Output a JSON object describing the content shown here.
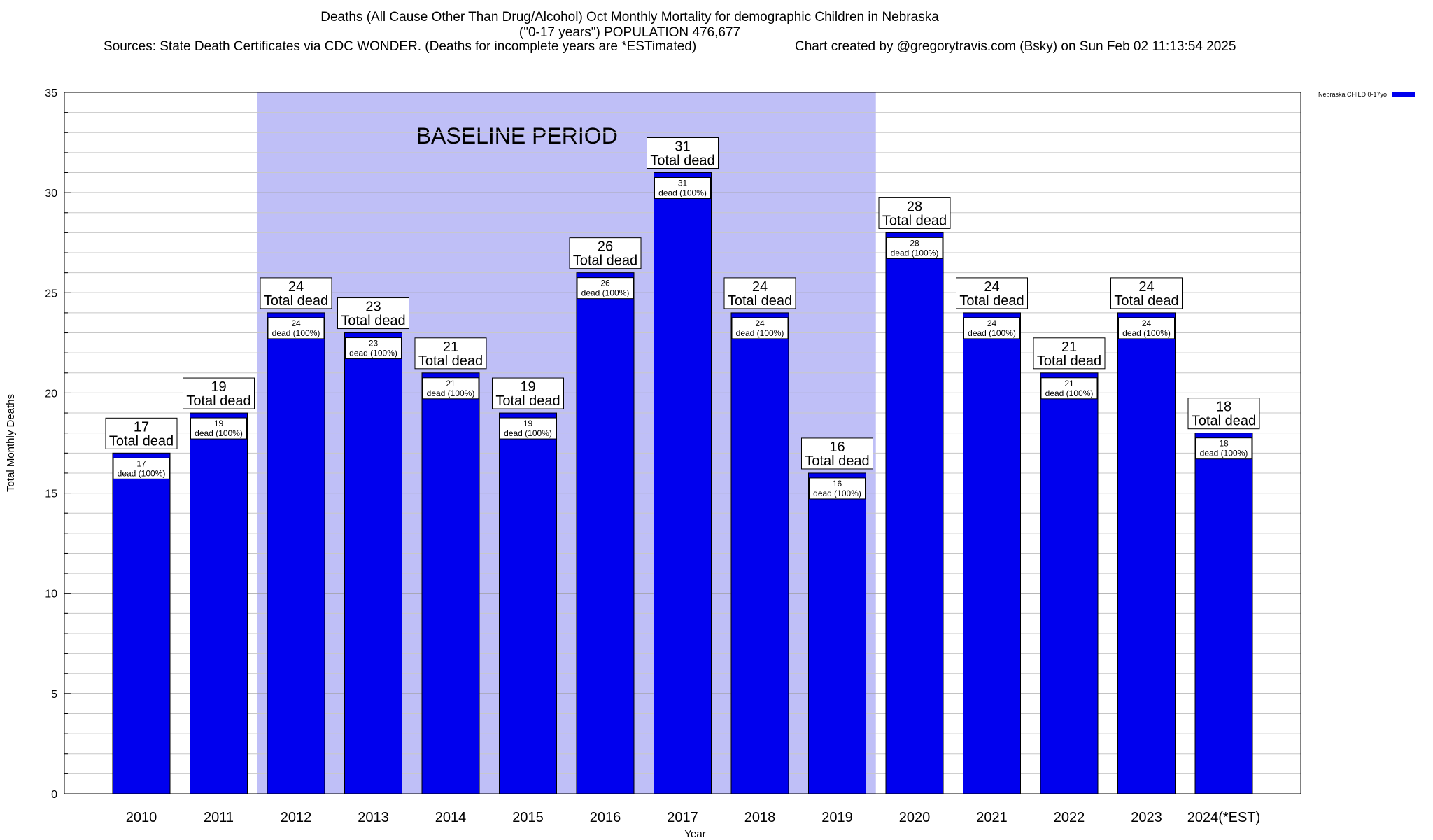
{
  "header": {
    "title_line1": "Deaths (All Cause Other Than Drug/Alcohol) Oct Monthly Mortality for demographic Children in Nebraska",
    "title_line2": "(\"0-17 years\") POPULATION 476,677",
    "sources": "Sources: State Death Certificates via CDC WONDER. (Deaths for incomplete years are *ESTimated)",
    "credit": "Chart created by @gregorytravis.com (Bsky) on Sun Feb 02 11:13:54 2025"
  },
  "legend": {
    "label": "Nebraska CHILD 0-17yo"
  },
  "colors": {
    "bar": "#0000ee",
    "baseline_band": "#bfbff7",
    "grid": "#c8c8c8"
  },
  "chart_data": {
    "type": "bar",
    "categories": [
      "2010",
      "2011",
      "2012",
      "2013",
      "2014",
      "2015",
      "2016",
      "2017",
      "2018",
      "2019",
      "2020",
      "2021",
      "2022",
      "2023",
      "2024(*EST)"
    ],
    "series": [
      {
        "name": "Nebraska CHILD 0-17yo",
        "values": [
          17,
          19,
          24,
          23,
          21,
          19,
          26,
          31,
          24,
          16,
          28,
          24,
          21,
          24,
          18
        ]
      }
    ],
    "total_label_suffix": "Total dead",
    "inner_label_suffix": "dead (100%)",
    "xlabel": "Year",
    "ylabel": "Total Monthly Deaths",
    "ylim": [
      0,
      35
    ],
    "yticks": [
      0,
      5,
      10,
      15,
      20,
      25,
      30,
      35
    ],
    "grid": true,
    "legend_position": "top-right",
    "baseline_period": {
      "label": "BASELINE PERIOD",
      "from": "2012",
      "to": "2019"
    }
  }
}
